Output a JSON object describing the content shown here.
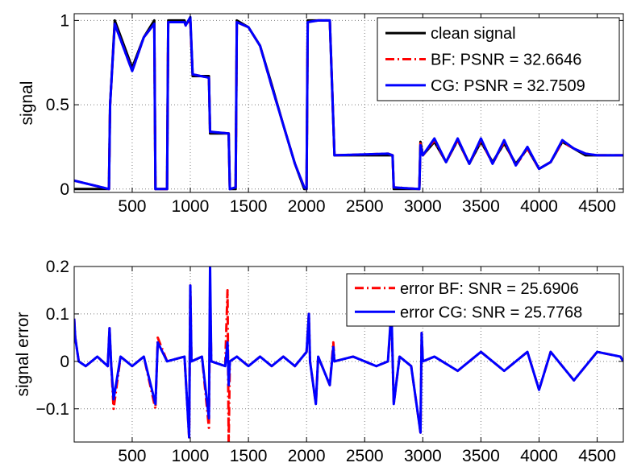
{
  "chart_data": [
    {
      "type": "line",
      "ylabel": "signal",
      "xlim": [
        1,
        4725
      ],
      "ylim": [
        -0.02,
        1.04
      ],
      "xticks": [
        500,
        1000,
        1500,
        2000,
        2500,
        3000,
        3500,
        4000,
        4500
      ],
      "yticks": [
        0,
        0.5,
        1
      ],
      "ytick_labels": [
        "0",
        "0.5",
        "1"
      ],
      "grid": true,
      "legend_location": "top-right",
      "series": [
        {
          "name": "clean signal",
          "color": "#000000",
          "style": "solid",
          "x": [
            1,
            300,
            310,
            350,
            500,
            600,
            690,
            700,
            800,
            810,
            950,
            960,
            1000,
            1020,
            1160,
            1170,
            1330,
            1340,
            1390,
            1400,
            1500,
            1600,
            1700,
            1800,
            1900,
            1980,
            2000,
            2010,
            2100,
            2200,
            2220,
            2240,
            2700,
            2740,
            2750,
            2970,
            2980,
            3000,
            3100,
            3200,
            3300,
            3400,
            3500,
            3600,
            3700,
            3800,
            3900,
            4000,
            4100,
            4200,
            4300,
            4400,
            4500,
            4725
          ],
          "y": [
            0.0,
            0.0,
            0.5,
            1.0,
            0.72,
            0.9,
            1.0,
            0.0,
            0.0,
            1.0,
            1.0,
            0.98,
            1.0,
            0.67,
            0.67,
            0.33,
            0.33,
            0.0,
            0.0,
            1.0,
            0.96,
            0.85,
            0.62,
            0.38,
            0.15,
            0.0,
            0.0,
            1.0,
            1.0,
            1.0,
            0.6,
            0.2,
            0.2,
            0.2,
            0.0,
            0.0,
            0.28,
            0.2,
            0.28,
            0.16,
            0.29,
            0.15,
            0.28,
            0.16,
            0.27,
            0.15,
            0.24,
            0.12,
            0.16,
            0.28,
            0.24,
            0.2,
            0.2,
            0.2
          ]
        },
        {
          "name": "BF: PSNR = 32.6646",
          "color": "#ff0000",
          "style": "dashdot",
          "x": [
            1,
            300,
            310,
            350,
            500,
            600,
            690,
            700,
            800,
            810,
            950,
            960,
            1000,
            1020,
            1160,
            1170,
            1330,
            1340,
            1390,
            1400,
            1500,
            1600,
            1700,
            1800,
            1900,
            1980,
            2000,
            2010,
            2100,
            2200,
            2220,
            2240,
            2700,
            2740,
            2750,
            2970,
            2980,
            3000,
            3100,
            3200,
            3300,
            3400,
            3500,
            3600,
            3700,
            3800,
            3900,
            4000,
            4100,
            4200,
            4300,
            4400,
            4500,
            4725
          ],
          "y": [
            0.05,
            0.0,
            0.5,
            0.98,
            0.7,
            0.9,
            0.98,
            0.0,
            0.0,
            0.99,
            0.99,
            0.97,
            1.0,
            0.68,
            0.66,
            0.34,
            0.33,
            0.0,
            0.01,
            0.99,
            0.96,
            0.85,
            0.61,
            0.38,
            0.15,
            0.01,
            0.0,
            0.99,
            1.0,
            1.0,
            0.6,
            0.2,
            0.21,
            0.2,
            0.01,
            0.0,
            0.27,
            0.2,
            0.29,
            0.16,
            0.29,
            0.15,
            0.29,
            0.15,
            0.28,
            0.14,
            0.24,
            0.12,
            0.16,
            0.28,
            0.24,
            0.21,
            0.2,
            0.2
          ]
        },
        {
          "name": "CG: PSNR = 32.7509",
          "color": "#0000ff",
          "style": "solid",
          "x": [
            1,
            300,
            310,
            350,
            500,
            600,
            690,
            700,
            800,
            810,
            950,
            960,
            1000,
            1020,
            1160,
            1170,
            1330,
            1340,
            1390,
            1400,
            1500,
            1600,
            1700,
            1800,
            1900,
            1980,
            2000,
            2010,
            2100,
            2200,
            2220,
            2240,
            2700,
            2740,
            2750,
            2970,
            2980,
            3000,
            3100,
            3200,
            3300,
            3400,
            3500,
            3600,
            3700,
            3800,
            3900,
            4000,
            4100,
            4200,
            4300,
            4400,
            4500,
            4725
          ],
          "y": [
            0.05,
            0.0,
            0.5,
            0.98,
            0.7,
            0.9,
            0.98,
            0.0,
            0.0,
            0.99,
            0.99,
            0.97,
            1.02,
            0.68,
            0.66,
            0.34,
            0.33,
            0.0,
            0.01,
            0.99,
            0.96,
            0.85,
            0.61,
            0.38,
            0.15,
            0.01,
            0.0,
            0.99,
            1.0,
            1.0,
            0.6,
            0.2,
            0.21,
            0.2,
            0.01,
            0.0,
            0.26,
            0.2,
            0.3,
            0.16,
            0.3,
            0.15,
            0.3,
            0.15,
            0.29,
            0.14,
            0.25,
            0.12,
            0.16,
            0.29,
            0.24,
            0.21,
            0.2,
            0.2
          ]
        }
      ]
    },
    {
      "type": "line",
      "ylabel": "signal error",
      "xlim": [
        1,
        4725
      ],
      "ylim": [
        -0.17,
        0.2
      ],
      "xticks": [
        500,
        1000,
        1500,
        2000,
        2500,
        3000,
        3500,
        4000,
        4500
      ],
      "yticks": [
        -0.1,
        0,
        0.1,
        0.2
      ],
      "ytick_labels": [
        "−0.1",
        "0",
        "0.1",
        "0.2"
      ],
      "grid": true,
      "legend_location": "top-right",
      "series": [
        {
          "name": "error BF: SNR = 25.6906",
          "color": "#ff0000",
          "style": "dashdot",
          "x": [
            1,
            10,
            40,
            100,
            200,
            290,
            305,
            320,
            340,
            400,
            500,
            600,
            700,
            720,
            800,
            950,
            990,
            1000,
            1010,
            1100,
            1160,
            1170,
            1180,
            1300,
            1320,
            1330,
            1340,
            1400,
            1500,
            1600,
            1700,
            1800,
            1900,
            2000,
            2020,
            2030,
            2080,
            2100,
            2200,
            2230,
            2240,
            2400,
            2600,
            2700,
            2730,
            2750,
            2800,
            2900,
            2980,
            2990,
            3000,
            3100,
            3300,
            3500,
            3700,
            3900,
            4000,
            4100,
            4300,
            4500,
            4700,
            4725
          ],
          "y": [
            0.09,
            0.05,
            0.0,
            -0.01,
            0.01,
            -0.01,
            0.07,
            -0.01,
            -0.1,
            0.01,
            -0.01,
            0.01,
            -0.1,
            0.05,
            0.0,
            0.01,
            -0.16,
            0.16,
            0.0,
            0.01,
            -0.14,
            0.15,
            0.0,
            -0.01,
            0.15,
            -0.17,
            0.0,
            0.01,
            -0.01,
            0.01,
            -0.01,
            0.01,
            -0.01,
            0.02,
            0.1,
            0.0,
            -0.09,
            0.01,
            -0.05,
            0.04,
            0.0,
            0.01,
            -0.01,
            0.0,
            0.1,
            -0.09,
            0.01,
            -0.01,
            -0.15,
            0.06,
            0.0,
            0.01,
            -0.02,
            0.02,
            -0.02,
            0.02,
            -0.06,
            0.02,
            -0.04,
            0.02,
            0.01,
            0.0
          ]
        },
        {
          "name": "error CG: SNR = 25.7768",
          "color": "#0000ff",
          "style": "solid",
          "x": [
            1,
            10,
            40,
            100,
            200,
            290,
            305,
            320,
            340,
            400,
            500,
            600,
            700,
            720,
            800,
            950,
            990,
            1000,
            1010,
            1100,
            1160,
            1170,
            1180,
            1300,
            1320,
            1330,
            1340,
            1400,
            1500,
            1600,
            1700,
            1800,
            1900,
            2000,
            2020,
            2030,
            2080,
            2100,
            2200,
            2230,
            2240,
            2400,
            2600,
            2700,
            2730,
            2750,
            2800,
            2900,
            2980,
            2990,
            3000,
            3100,
            3300,
            3500,
            3700,
            3900,
            4000,
            4100,
            4300,
            4500,
            4700,
            4725
          ],
          "y": [
            0.09,
            0.05,
            0.0,
            -0.01,
            0.01,
            -0.01,
            0.07,
            -0.01,
            -0.08,
            0.01,
            -0.01,
            0.01,
            -0.09,
            0.04,
            0.0,
            0.01,
            -0.16,
            0.16,
            0.0,
            0.01,
            -0.12,
            0.2,
            0.0,
            -0.01,
            0.04,
            -0.05,
            0.0,
            0.01,
            -0.01,
            0.01,
            -0.01,
            0.01,
            -0.01,
            0.02,
            0.1,
            0.0,
            -0.09,
            0.01,
            -0.05,
            0.03,
            0.0,
            0.01,
            -0.01,
            0.0,
            0.11,
            -0.09,
            0.01,
            -0.01,
            -0.15,
            0.06,
            0.0,
            0.01,
            -0.02,
            0.02,
            -0.02,
            0.02,
            -0.06,
            0.02,
            -0.04,
            0.02,
            0.01,
            0.0
          ]
        }
      ]
    }
  ]
}
